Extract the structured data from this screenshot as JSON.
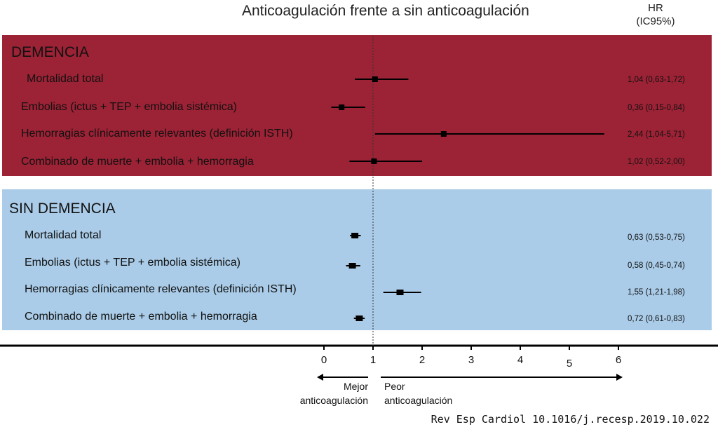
{
  "source_credit": "Rev Esp Cardiol 10.1016/j.recesp.2019.10.022",
  "colors": {
    "demencia_panel": "#9c2235",
    "sin_demencia_panel": "#aacce8",
    "marker": "#000000"
  },
  "chart_data": {
    "type": "forest",
    "title": "Anticoagulación frente a sin anticoagulación",
    "value_column_header": [
      "HR",
      "(IC95%)"
    ],
    "reference_line": 1,
    "xlim": [
      0,
      6
    ],
    "x_ticks": [
      "0",
      "1",
      "2",
      "3",
      "4",
      "5",
      "6"
    ],
    "direction_labels": {
      "left": [
        "Mejor",
        "anticoagulación"
      ],
      "right": [
        "Peor",
        "anticoagulación"
      ]
    },
    "groups": [
      {
        "name": "DEMENCIA",
        "rows": [
          {
            "label": "Mortalidad total",
            "hr": 1.04,
            "lo": 0.63,
            "hi": 1.72,
            "text": "1,04 (0,63-1,72)"
          },
          {
            "label": "Embolias (ictus + TEP + embolia sistémica)",
            "hr": 0.36,
            "lo": 0.15,
            "hi": 0.84,
            "text": "0,36 (0,15-0,84)"
          },
          {
            "label": "Hemorragias clínicamente relevantes (definición ISTH)",
            "hr": 2.44,
            "lo": 1.04,
            "hi": 5.71,
            "text": "2,44 (1,04-5,71)"
          },
          {
            "label": "Combinado de muerte + embolia + hemorragia",
            "hr": 1.02,
            "lo": 0.52,
            "hi": 2.0,
            "text": "1,02 (0,52-2,00)"
          }
        ]
      },
      {
        "name": "SIN DEMENCIA",
        "rows": [
          {
            "label": "Mortalidad total",
            "hr": 0.63,
            "lo": 0.53,
            "hi": 0.75,
            "text": "0,63 (0,53-0,75)"
          },
          {
            "label": "Embolias (ictus + TEP + embolia sistémica)",
            "hr": 0.58,
            "lo": 0.45,
            "hi": 0.74,
            "text": "0,58 (0,45-0,74)"
          },
          {
            "label": "Hemorragias clínicamente relevantes (definición ISTH)",
            "hr": 1.55,
            "lo": 1.21,
            "hi": 1.98,
            "text": "1,55 (1,21-1,98)"
          },
          {
            "label": "Combinado de muerte + embolia + hemorragia",
            "hr": 0.72,
            "lo": 0.61,
            "hi": 0.83,
            "text": "0,72 (0,61-0,83)"
          }
        ]
      }
    ]
  }
}
